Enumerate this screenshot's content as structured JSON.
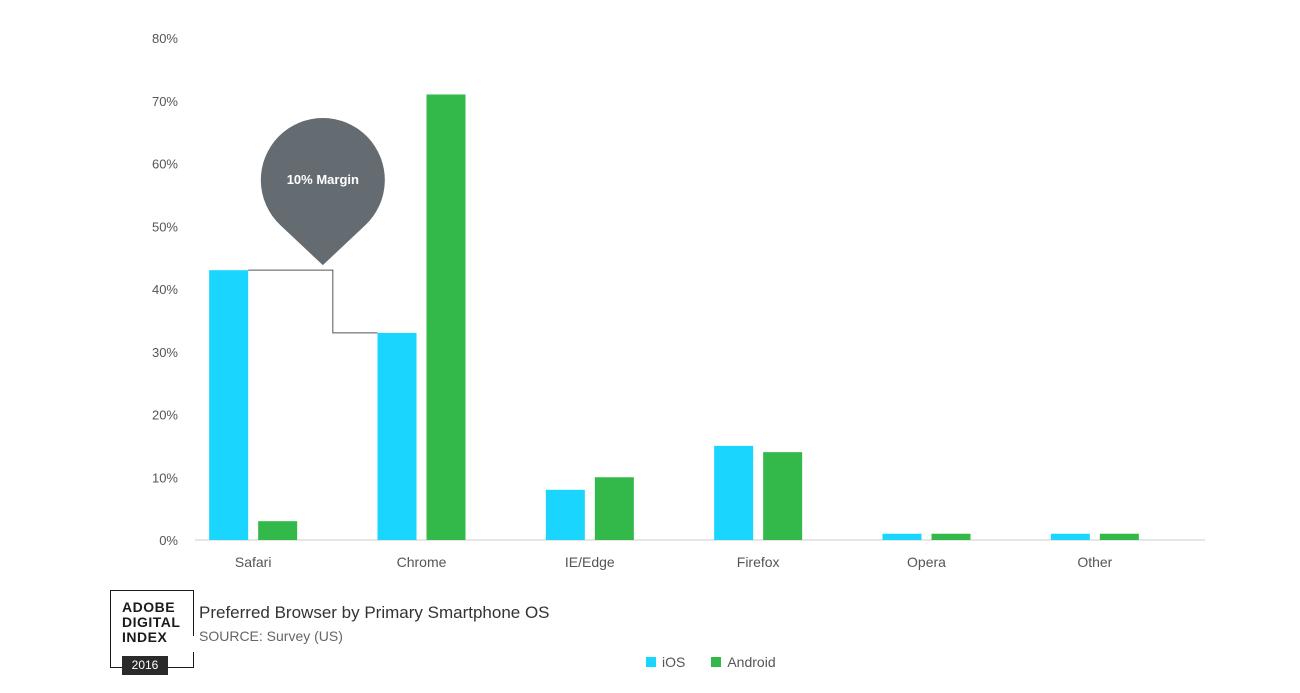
{
  "chart_data": {
    "type": "bar",
    "categories": [
      "Safari",
      "Chrome",
      "IE/Edge",
      "Firefox",
      "Opera",
      "Other"
    ],
    "series": [
      {
        "name": "iOS",
        "color": "#1ad6ff",
        "values": [
          43,
          33,
          8,
          15,
          1,
          1
        ]
      },
      {
        "name": "Android",
        "color": "#33b84a",
        "values": [
          3,
          71,
          10,
          14,
          1,
          1
        ]
      }
    ],
    "ylim": [
      0,
      80
    ],
    "yticks": [
      "0%",
      "10%",
      "20%",
      "30%",
      "40%",
      "50%",
      "60%",
      "70%",
      "80%"
    ],
    "grid": false,
    "legend_position": "bottom-center",
    "annotation": {
      "text": "10% Margin",
      "color": "#646c72"
    }
  },
  "footer": {
    "title": "Preferred Browser by Primary Smartphone OS",
    "source": "SOURCE: Survey (US)"
  },
  "logo": {
    "text": "ADOBE\nDIGITAL\nINDEX",
    "year": "2016"
  }
}
